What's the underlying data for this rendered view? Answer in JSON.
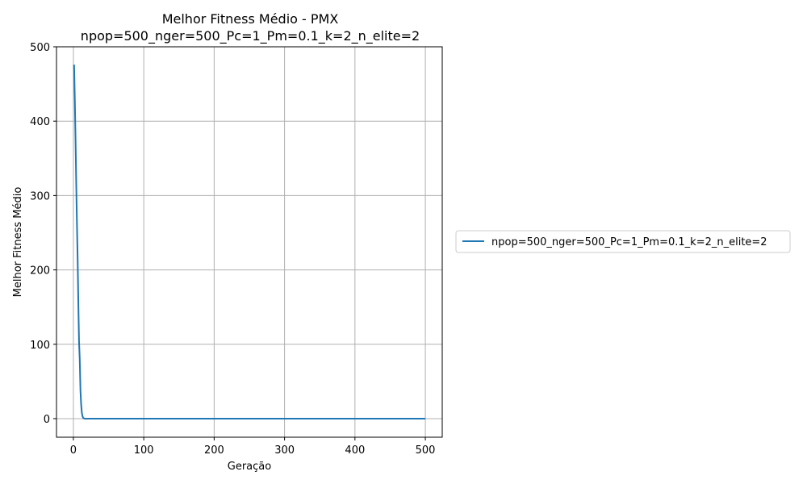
{
  "chart_data": {
    "type": "line",
    "title": "Melhor Fitness Médio - PMX",
    "subtitle": "npop=500_nger=500_Pc=1_Pm=0.1_k=2_n_elite=2",
    "xlabel": "Geração",
    "ylabel": "Melhor Fitness Médio",
    "xlim": [
      -24,
      524
    ],
    "ylim": [
      -25,
      500
    ],
    "xticks": [
      0,
      100,
      200,
      300,
      400,
      500
    ],
    "yticks": [
      0,
      100,
      200,
      300,
      400,
      500
    ],
    "grid": true,
    "legend_position": "center-right outside",
    "series": [
      {
        "name": "npop=500_nger=500_Pc=1_Pm=0.1_k=2_n_elite=2",
        "color": "#1f77b4",
        "x": [
          1,
          2,
          3,
          4,
          5,
          6,
          7,
          8,
          9,
          10,
          11,
          12,
          13,
          14,
          15,
          16,
          20,
          50,
          100,
          200,
          300,
          400,
          500
        ],
        "y": [
          476,
          430,
          375,
          320,
          265,
          215,
          160,
          105,
          80,
          38,
          20,
          8,
          3,
          1,
          0.3,
          0,
          0,
          0,
          0,
          0,
          0,
          0,
          0
        ]
      }
    ]
  }
}
